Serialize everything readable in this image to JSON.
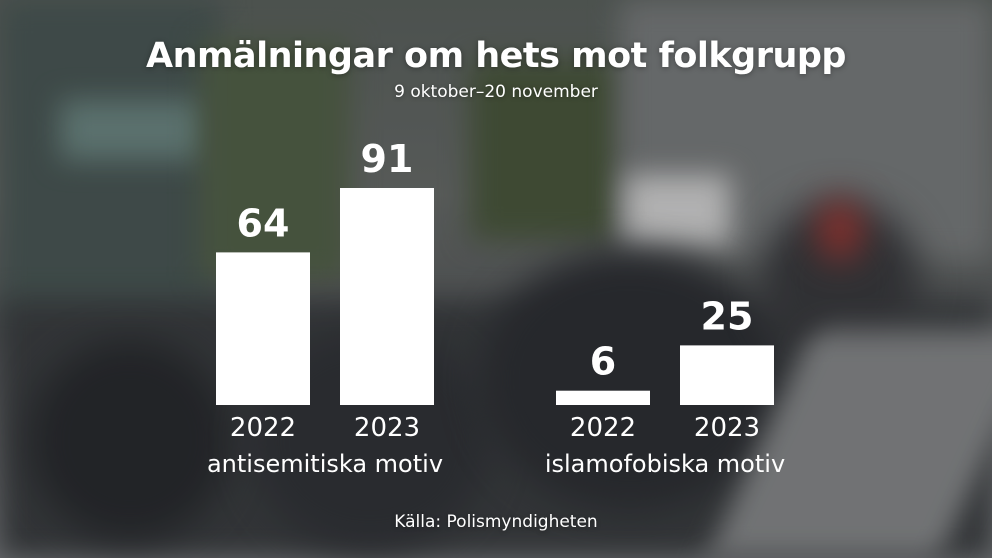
{
  "chart_data": {
    "type": "bar",
    "title": "Anmälningar om hets mot folkgrupp",
    "subtitle": "9 oktober–20 november",
    "groups": [
      {
        "name": "antisemitiska motiv",
        "categories": [
          "2022",
          "2023"
        ],
        "values": [
          64,
          91
        ]
      },
      {
        "name": "islamofobiska motiv",
        "categories": [
          "2022",
          "2023"
        ],
        "values": [
          6,
          25
        ]
      }
    ],
    "ylim": [
      0,
      91
    ],
    "grid": false,
    "bar_color": "#ffffff"
  },
  "source": "Källa: Polismyndigheten"
}
